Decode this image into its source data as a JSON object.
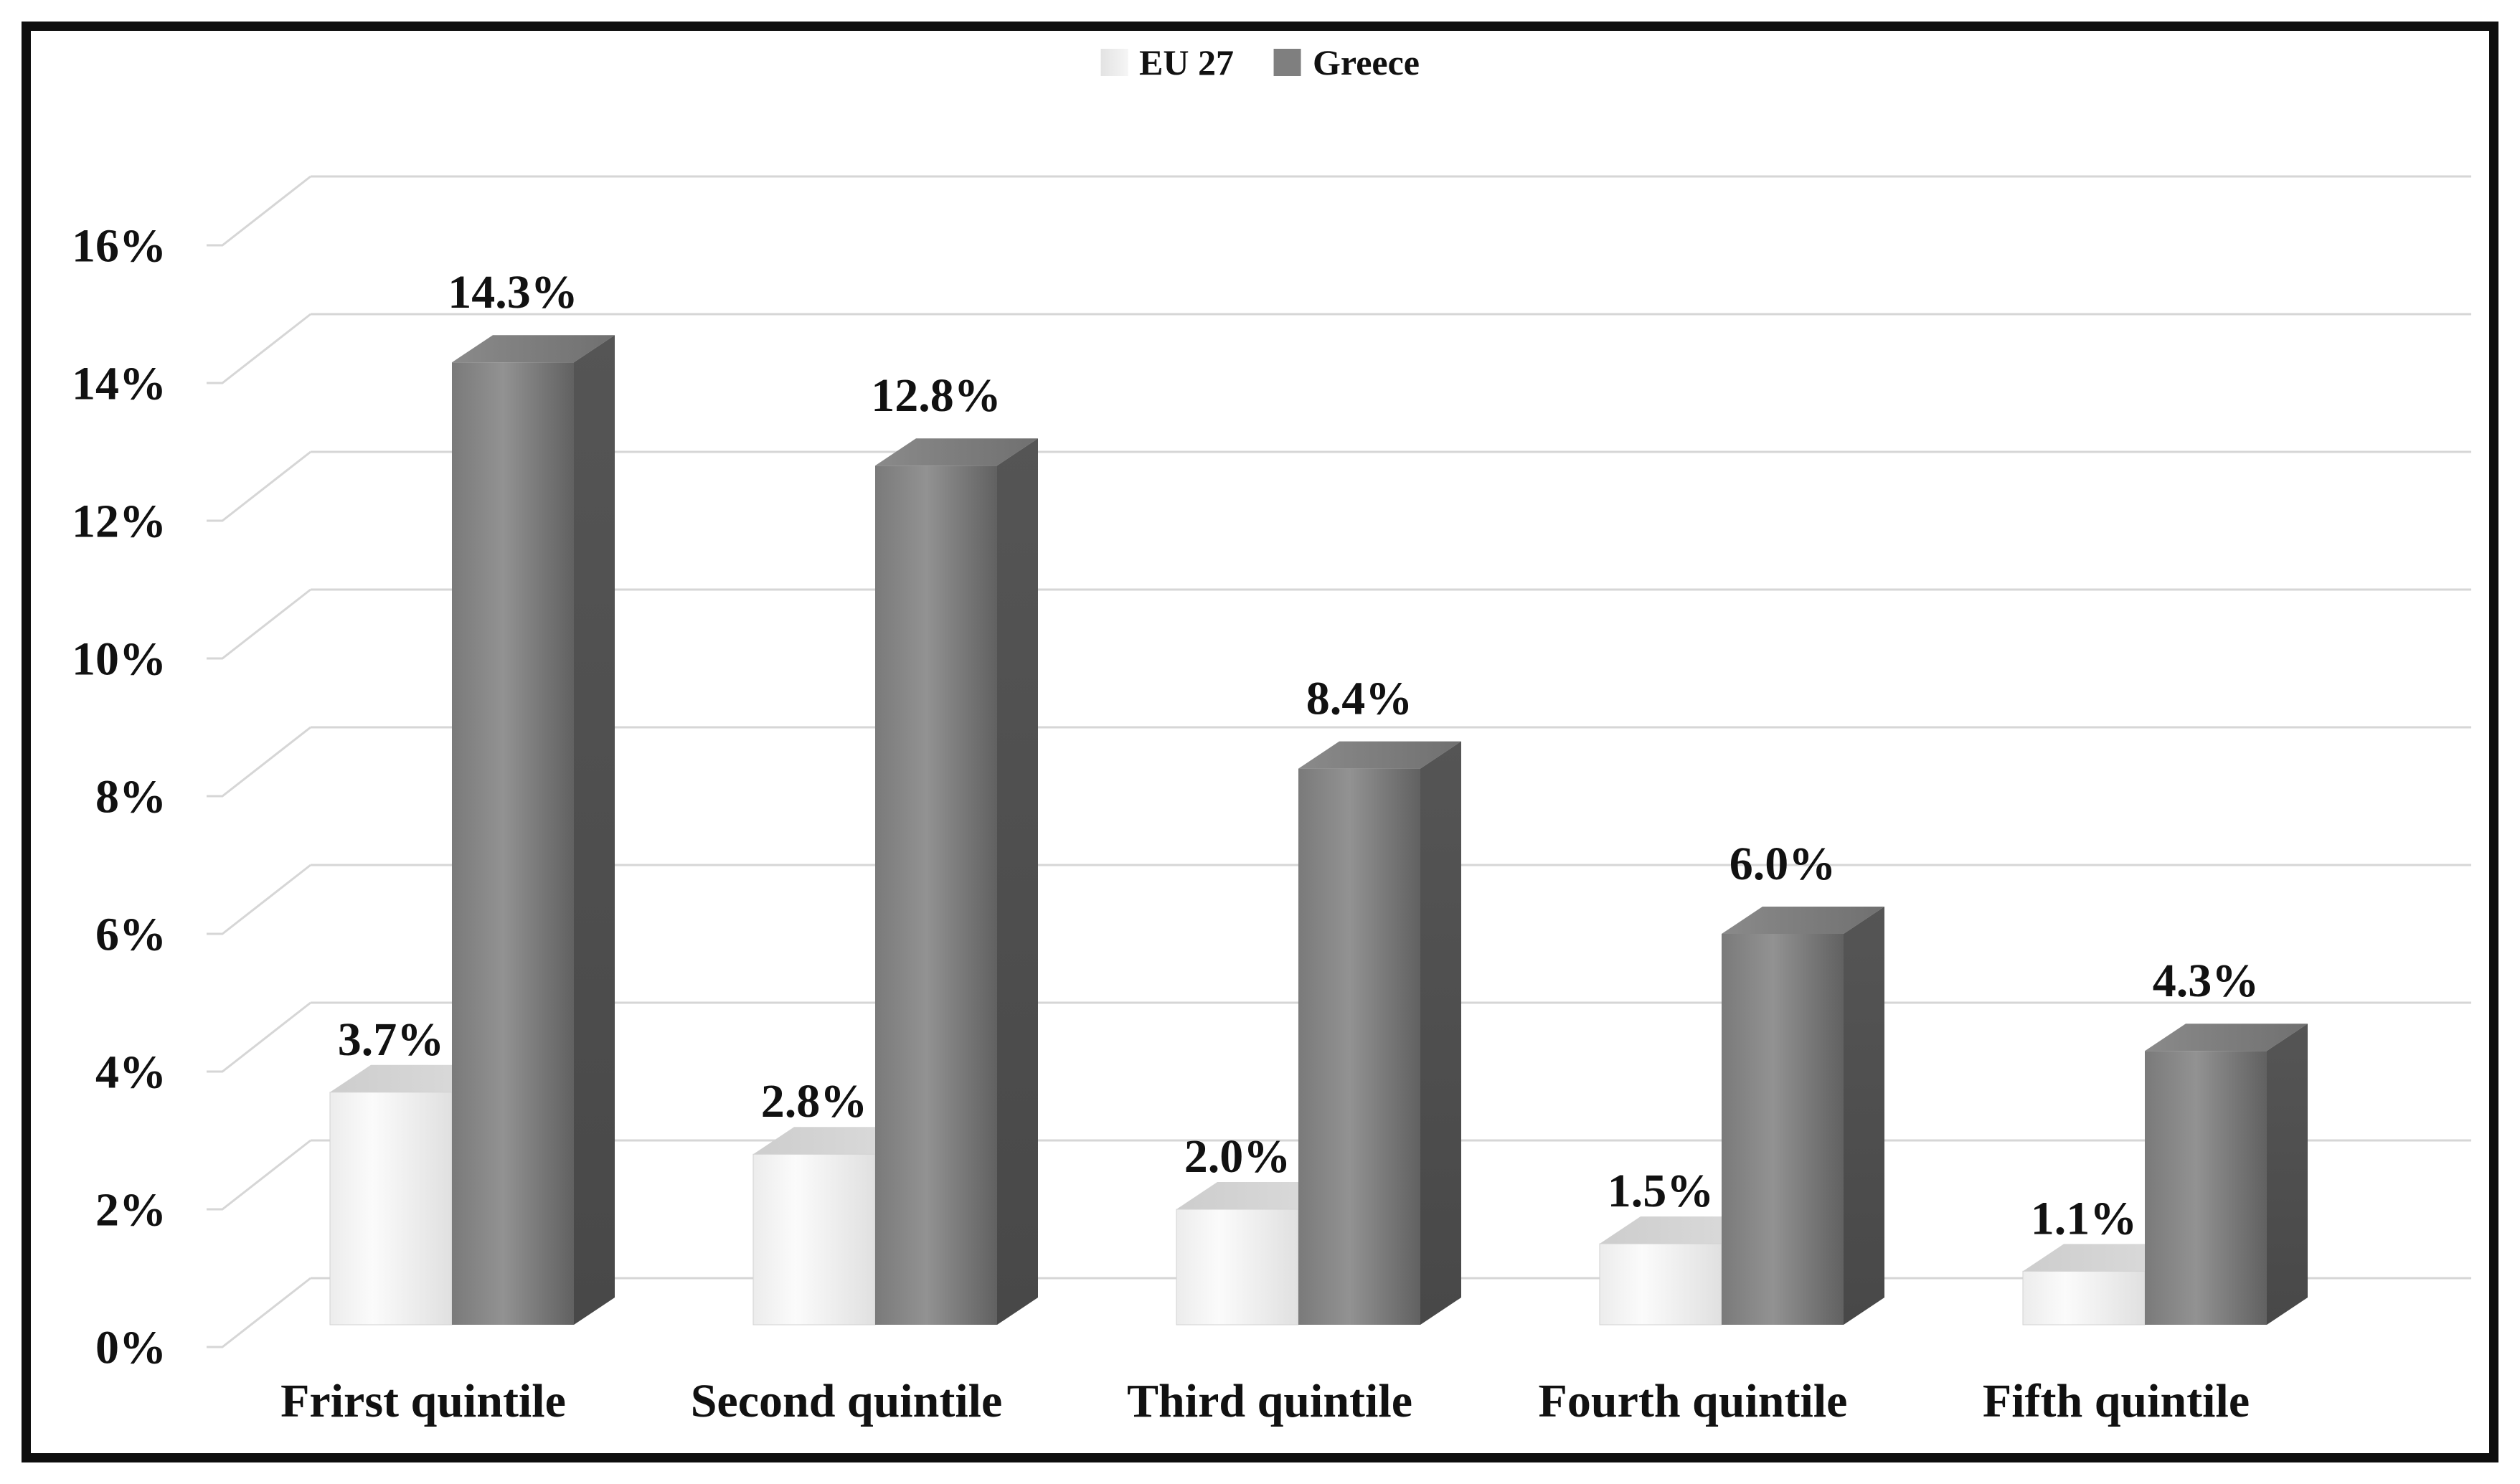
{
  "chart_data": {
    "type": "bar",
    "is_3d": true,
    "title": "",
    "categories": [
      "Frirst quintile",
      "Second quintile",
      "Third quintile",
      "Fourth quintile",
      "Fifth quintile"
    ],
    "series": [
      {
        "name": "EU 27",
        "values": [
          3.7,
          2.8,
          2.0,
          1.5,
          1.1
        ],
        "labels": [
          "3.7%",
          "2.8%",
          "2.0%",
          "1.5%",
          "1.1%"
        ],
        "front_gradient": [
          "#ececec",
          "#fbfbfb",
          "#e0e0e0"
        ],
        "top_color": "#cdcdcd",
        "top_color2": "#dcdcdc",
        "side_color": "#bdbdbd",
        "swatch_color": "#e3e3e3"
      },
      {
        "name": "Greece",
        "values": [
          14.3,
          12.8,
          8.4,
          6.0,
          4.3
        ],
        "labels": [
          "14.3%",
          "12.8%",
          "8.4%",
          "6.0%",
          "4.3%"
        ],
        "front_gradient": [
          "#7a7a7a",
          "#929292",
          "#616161"
        ],
        "top_color": "#8a8a8a",
        "top_color2": "#707070",
        "side_color": "#555555",
        "side_color2": "#484848",
        "swatch_color": "#7f7f7f"
      }
    ],
    "y_axis": {
      "min": 0,
      "max": 16,
      "step": 2,
      "tick_labels": [
        "0%",
        "2%",
        "4%",
        "6%",
        "8%",
        "10%",
        "12%",
        "14%",
        "16%"
      ]
    },
    "legend": {
      "position": "top-center",
      "entries": [
        "EU 27",
        "Greece"
      ]
    },
    "grid": {
      "visible": true,
      "color": "#d6d6d6"
    },
    "text_color": "#111111"
  }
}
